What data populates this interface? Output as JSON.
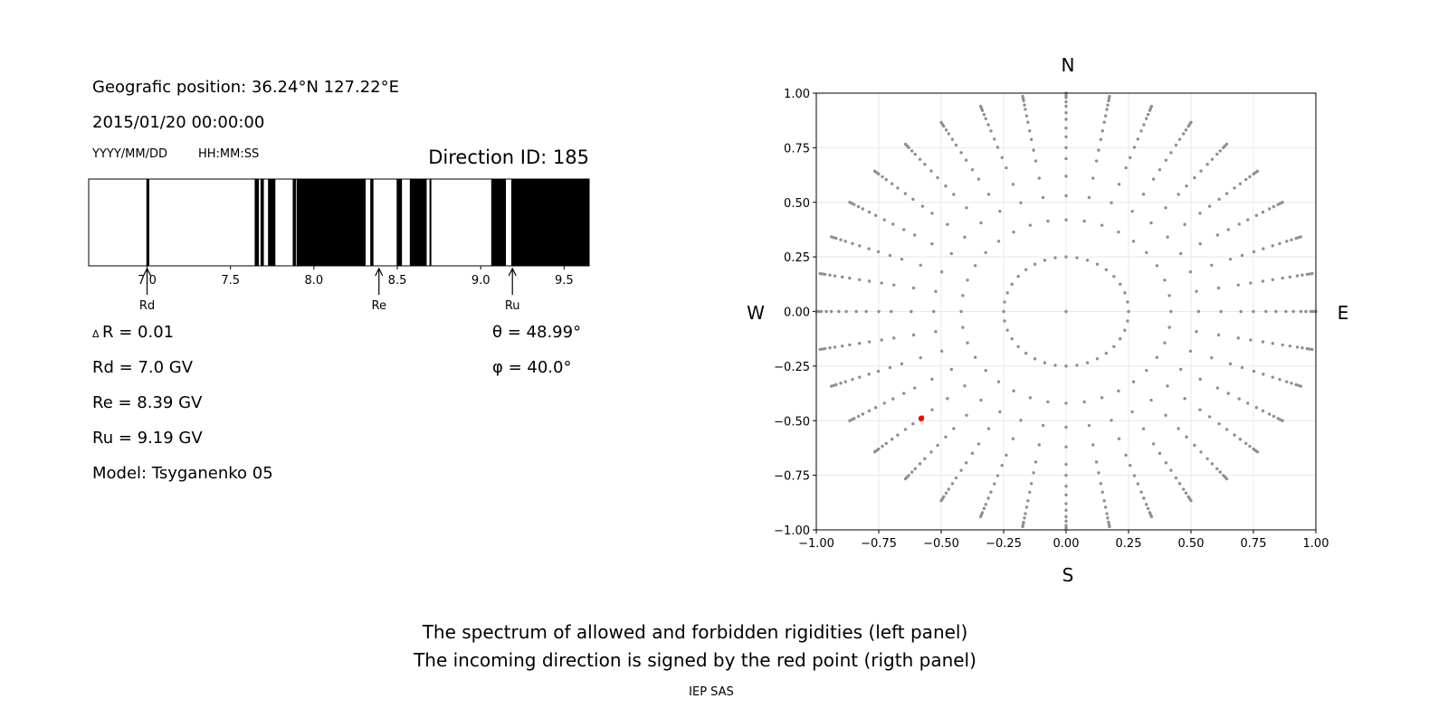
{
  "left_panel": {
    "position": "Geografic position: 36.24°N 127.22°E",
    "datetime": "2015/01/20 00:00:00",
    "date_format": "YYYY/MM/DD",
    "time_format": "HH:MM:SS",
    "direction_id": "Direction ID: 185",
    "delta_symbol": "Δ",
    "delta_r": "R = 0.01",
    "rd": "Rd = 7.0 GV",
    "re": "Re = 8.39 GV",
    "ru": "Ru = 9.19 GV",
    "model": "Model: Tsyganenko 05",
    "theta": "θ = 48.99°",
    "phi": "φ = 40.0°"
  },
  "captions": {
    "line1": "The spectrum of allowed and forbidden rigidities (left panel)",
    "line2": "The incoming direction is signed by the red point (rigth panel)",
    "footer": "IEP SAS"
  },
  "compass": {
    "n": "N",
    "s": "S",
    "w": "W",
    "e": "E"
  },
  "chart_data": [
    {
      "type": "bar",
      "name": "rigidity-spectrum",
      "xlim": [
        6.65,
        9.65
      ],
      "xticks": [
        "7.0",
        "7.5",
        "8.0",
        "8.5",
        "9.0",
        "9.5"
      ],
      "xtick_values": [
        7.0,
        7.5,
        8.0,
        8.5,
        9.0,
        9.5
      ],
      "forbidden_bands": [
        [
          6.996,
          7.013
        ],
        [
          7.645,
          7.67
        ],
        [
          7.68,
          7.7
        ],
        [
          7.725,
          7.769
        ],
        [
          7.873,
          7.892
        ],
        [
          7.896,
          8.31
        ],
        [
          8.338,
          8.357
        ],
        [
          8.496,
          8.528
        ],
        [
          8.575,
          8.676
        ],
        [
          8.693,
          8.704
        ],
        [
          9.063,
          9.151
        ],
        [
          9.183,
          9.65
        ]
      ],
      "markers": [
        {
          "label": "Rd",
          "value": 7.0
        },
        {
          "label": "Re",
          "value": 8.39
        },
        {
          "label": "Ru",
          "value": 9.19
        }
      ],
      "colors": {
        "forbidden": "#000000",
        "allowed": "#ffffff"
      }
    },
    {
      "type": "scatter",
      "name": "direction-map",
      "xlim": [
        -1,
        1
      ],
      "ylim": [
        -1,
        1
      ],
      "xticks": [
        "−1.00",
        "−0.75",
        "−0.50",
        "−0.25",
        "0.00",
        "0.25",
        "0.50",
        "0.75",
        "1.00"
      ],
      "yticks": [
        "−1.00",
        "−0.75",
        "−0.50",
        "−0.25",
        "0.00",
        "0.25",
        "0.50",
        "0.75",
        "1.00"
      ],
      "tick_values": [
        -1,
        -0.75,
        -0.5,
        -0.25,
        0,
        0.25,
        0.5,
        0.75,
        1
      ],
      "grid": true,
      "azimuth_step_deg": 10,
      "radii": [
        0.25,
        0.42,
        0.53,
        0.62,
        0.7,
        0.75,
        0.8,
        0.84,
        0.88,
        0.91,
        0.94,
        0.96,
        0.98,
        0.99,
        1.0
      ],
      "center_point": [
        0,
        0
      ],
      "red_point": {
        "x": -0.58,
        "y": -0.49
      },
      "colors": {
        "points": "#8f8f8f",
        "highlight": "#ff0000",
        "grid": "#e8e8e8"
      }
    }
  ]
}
